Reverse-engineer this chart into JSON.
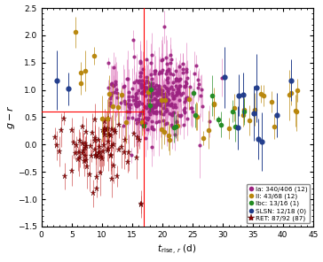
{
  "title": "",
  "xlabel": "$t_{\\mathrm{rise,}\\,r}$ (d)",
  "ylabel": "$g - r$",
  "xlim": [
    0,
    45
  ],
  "ylim": [
    -1.5,
    2.5
  ],
  "xticks": [
    0,
    5,
    10,
    15,
    20,
    25,
    30,
    35,
    40,
    45
  ],
  "yticks": [
    -1.5,
    -1.0,
    -0.5,
    0.0,
    0.5,
    1.0,
    1.5,
    2.0,
    2.5
  ],
  "red_line_x": 17.0,
  "red_line_y": 0.6,
  "legend_labels": [
    "Ia: 340/406 (12)",
    "II: 43/68 (12)",
    "Ibc: 13/16 (1)",
    "SLSN: 12/18 (0)",
    "RET: 87/92 (87)"
  ],
  "colors": {
    "Ia": "#9B2280",
    "Ia_err": "#E080C0",
    "II": "#B8860B",
    "Ibc": "#228B22",
    "SLSN": "#1E3A8A",
    "RET": "#8B0000",
    "RET_err": "#CC4444"
  },
  "figsize": [
    3.64,
    2.96
  ],
  "dpi": 100
}
